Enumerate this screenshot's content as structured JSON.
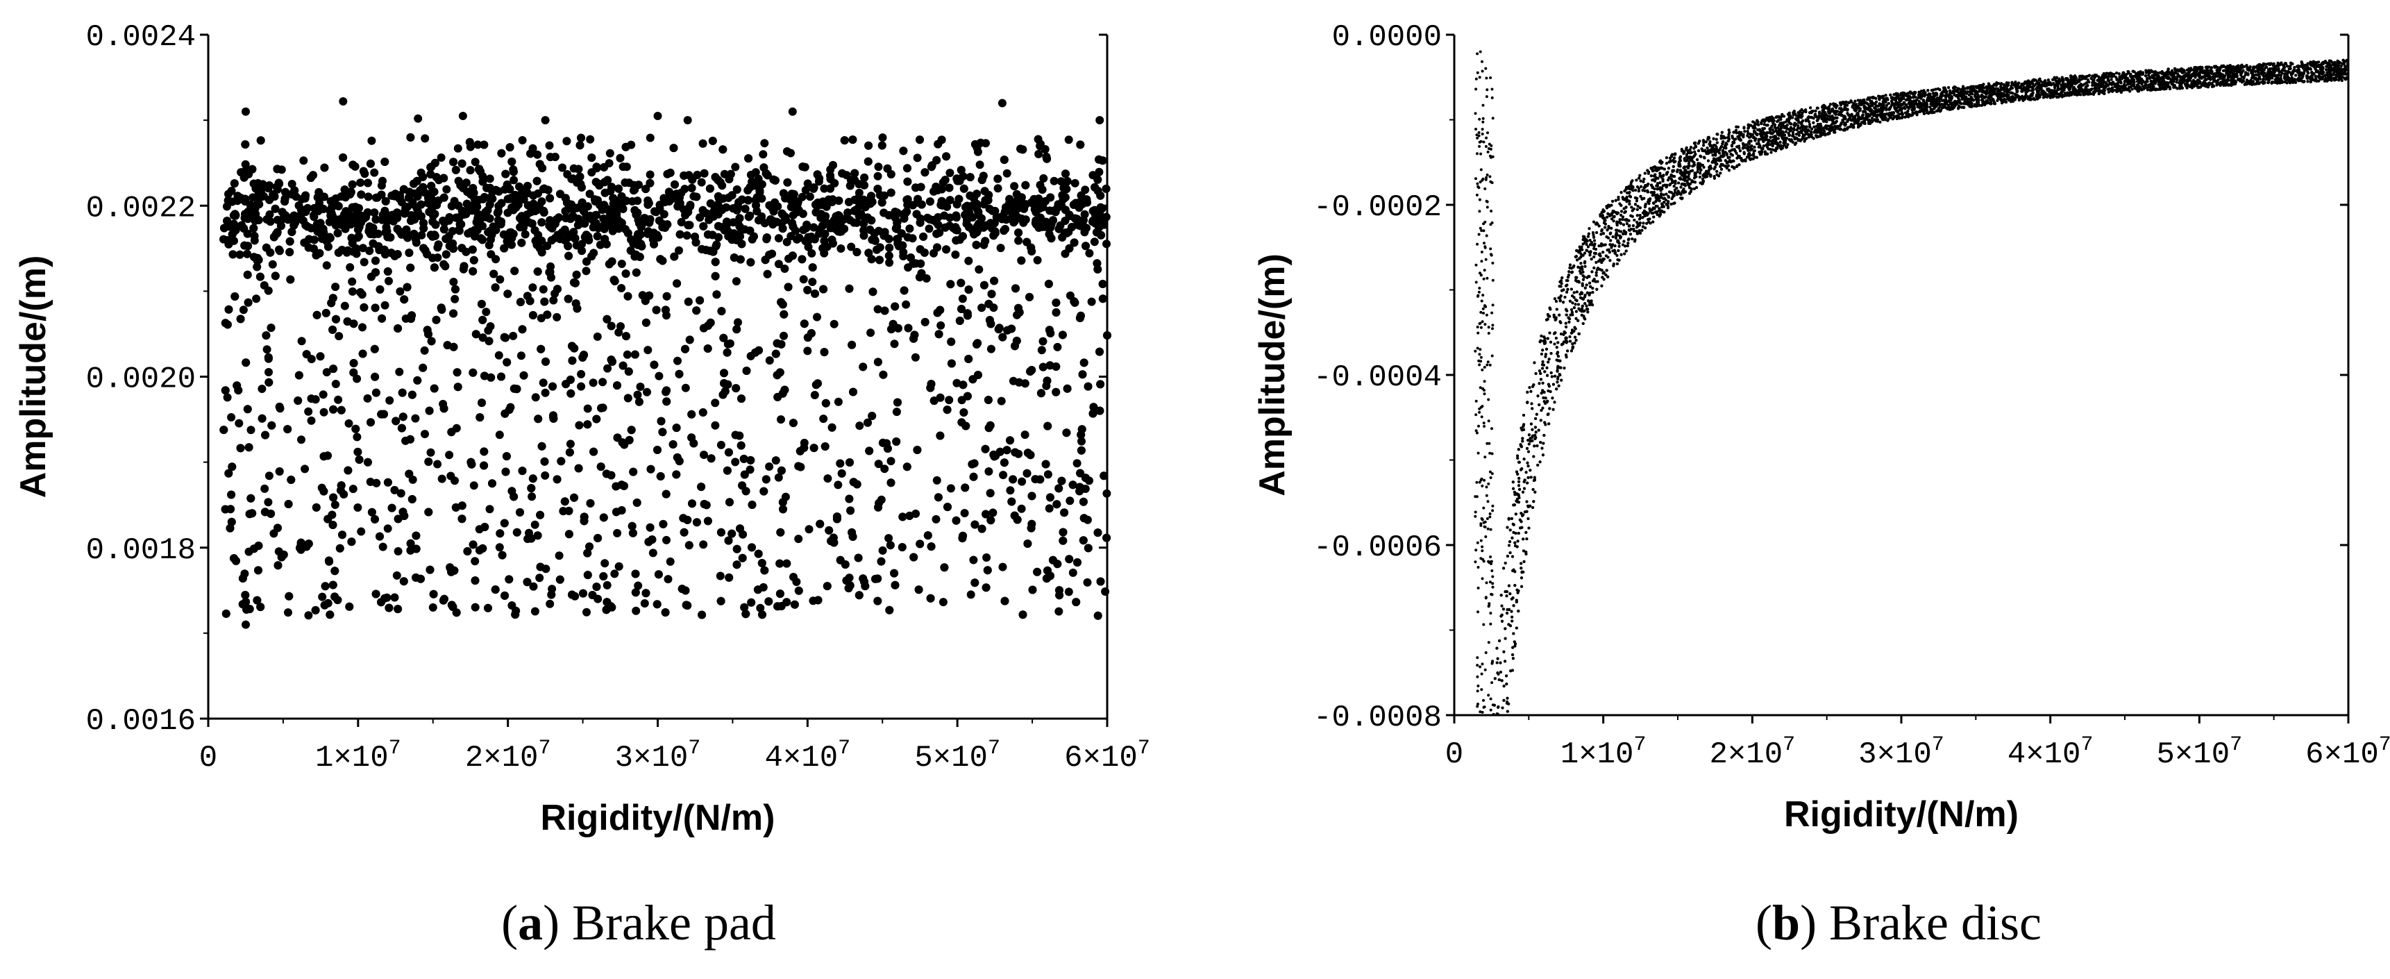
{
  "chart_data": [
    {
      "type": "scatter",
      "caption": {
        "open": "(",
        "letter": "a",
        "close": ")",
        "text": " Brake pad"
      },
      "xlabel": "Rigidity/(N/m)",
      "ylabel": "Amplitude/(m)",
      "xlim": [
        0,
        60000000
      ],
      "ylim": [
        0.0016,
        0.0024
      ],
      "x_ticks": [
        0,
        10000000,
        20000000,
        30000000,
        40000000,
        50000000,
        60000000
      ],
      "x_tick_labels": [
        {
          "base": "0",
          "exp": ""
        },
        {
          "base": "1×10",
          "exp": "7"
        },
        {
          "base": "2×10",
          "exp": "7"
        },
        {
          "base": "3×10",
          "exp": "7"
        },
        {
          "base": "4×10",
          "exp": "7"
        },
        {
          "base": "5×10",
          "exp": "7"
        },
        {
          "base": "6×10",
          "exp": "7"
        }
      ],
      "y_ticks": [
        0.0016,
        0.0018,
        0.002,
        0.0022,
        0.0024
      ],
      "y_tick_labels": [
        "0.0016",
        "0.0018",
        "0.0020",
        "0.0022",
        "0.0024"
      ],
      "grid": false,
      "point_color": "#000000",
      "distribution": {
        "x_range": [
          1000000,
          60000000
        ],
        "y_range": [
          0.00172,
          0.00228
        ],
        "n_points": 4200,
        "denser_near_y": 0.00219
      },
      "points": [
        {
          "x": 2500000,
          "y": 0.00231
        },
        {
          "x": 9000000,
          "y": 0.002322
        },
        {
          "x": 14000000,
          "y": 0.002302
        },
        {
          "x": 17000000,
          "y": 0.002305
        },
        {
          "x": 22500000,
          "y": 0.0023
        },
        {
          "x": 30000000,
          "y": 0.002305
        },
        {
          "x": 32000000,
          "y": 0.0023
        },
        {
          "x": 39000000,
          "y": 0.00231
        },
        {
          "x": 53000000,
          "y": 0.00232
        },
        {
          "x": 59500000,
          "y": 0.0023
        },
        {
          "x": 2500000,
          "y": 0.00171
        },
        {
          "x": 8000000,
          "y": 0.001735
        },
        {
          "x": 15000000,
          "y": 0.00173
        },
        {
          "x": 26000000,
          "y": 0.00174
        }
      ]
    },
    {
      "type": "scatter",
      "caption": {
        "open": "(",
        "letter": "b",
        "close": ")",
        "text": " Brake disc"
      },
      "xlabel": "Rigidity/(N/m)",
      "ylabel": "Amplitude/(m)",
      "xlim": [
        0,
        60000000
      ],
      "ylim": [
        -0.0008,
        0
      ],
      "x_ticks": [
        0,
        10000000,
        20000000,
        30000000,
        40000000,
        50000000,
        60000000
      ],
      "x_tick_labels": [
        {
          "base": "0",
          "exp": ""
        },
        {
          "base": "1×10",
          "exp": "7"
        },
        {
          "base": "2×10",
          "exp": "7"
        },
        {
          "base": "3×10",
          "exp": "7"
        },
        {
          "base": "4×10",
          "exp": "7"
        },
        {
          "base": "5×10",
          "exp": "7"
        },
        {
          "base": "6×10",
          "exp": "7"
        }
      ],
      "y_ticks": [
        0,
        -0.0002,
        -0.0004,
        -0.0006,
        -0.0008
      ],
      "y_tick_labels": [
        "0.0000",
        "-0.0002",
        "-0.0004",
        "-0.0006",
        "-0.0008"
      ],
      "grid": false,
      "point_color": "#000000",
      "curve": {
        "description": "amplitude ≈ -k / rigidity",
        "k": 2500,
        "points": [
          {
            "x": 3000000,
            "y": -0.00078
          },
          {
            "x": 4000000,
            "y": -0.00062
          },
          {
            "x": 5000000,
            "y": -0.0005
          },
          {
            "x": 6000000,
            "y": -0.00042
          },
          {
            "x": 8000000,
            "y": -0.00031
          },
          {
            "x": 10000000,
            "y": -0.00025
          },
          {
            "x": 15000000,
            "y": -0.00017
          },
          {
            "x": 20000000,
            "y": -0.000125
          },
          {
            "x": 30000000,
            "y": -8.5e-05
          },
          {
            "x": 40000000,
            "y": -6.3e-05
          },
          {
            "x": 50000000,
            "y": -5e-05
          },
          {
            "x": 60000000,
            "y": -4.2e-05
          }
        ],
        "n_points": 16000
      }
    }
  ]
}
